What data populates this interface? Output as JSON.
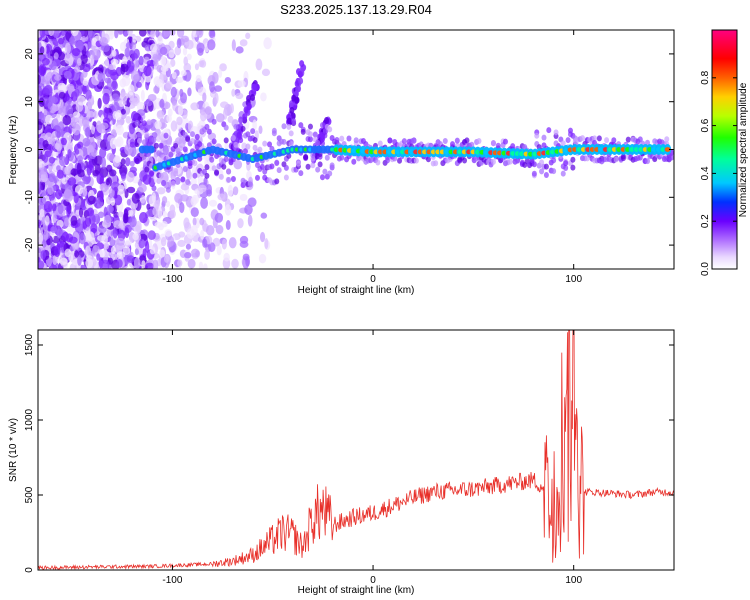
{
  "title": "S233.2025.137.13.29.R04",
  "chart_data": [
    {
      "type": "heatmap",
      "xlabel": "Height of straight line (km)",
      "ylabel": "Frequency (Hz)",
      "xlim": [
        -167,
        150
      ],
      "ylim": [
        -25,
        25
      ],
      "xticks": [
        -100,
        0,
        100
      ],
      "yticks": [
        -20,
        -10,
        0,
        10,
        20
      ],
      "colorbar": {
        "label": "Normalized spectral amplitude",
        "range": [
          0,
          1
        ],
        "ticks": [
          "0.0",
          "0.2",
          "0.4",
          "0.6",
          "0.8"
        ]
      },
      "ridge": [
        {
          "x": -110,
          "y": -4
        },
        {
          "x": -80,
          "y": 0
        },
        {
          "x": -60,
          "y": -2
        },
        {
          "x": -40,
          "y": 0
        },
        {
          "x": -20,
          "y": 0
        },
        {
          "x": 0,
          "y": -0.5
        },
        {
          "x": 50,
          "y": -0.5
        },
        {
          "x": 80,
          "y": -1
        },
        {
          "x": 100,
          "y": 0
        },
        {
          "x": 150,
          "y": 0
        }
      ],
      "colors": {
        "low": "#e9d8ff",
        "mid": "#7a1fff",
        "high": "#ff2a2a"
      }
    },
    {
      "type": "line",
      "xlabel": "Height of straight line (km)",
      "ylabel": "SNR (10 * v/v)",
      "xlim": [
        -167,
        150
      ],
      "ylim": [
        0,
        1600
      ],
      "xticks": [
        -100,
        0,
        100
      ],
      "yticks": [
        0,
        500,
        1000,
        1500
      ],
      "series": [
        {
          "color": "#e8302a",
          "x": [
            -167,
            -140,
            -110,
            -80,
            -70,
            -60,
            -50,
            -45,
            -40,
            -35,
            -30,
            -25,
            -20,
            -10,
            0,
            10,
            20,
            30,
            40,
            50,
            60,
            70,
            80,
            85,
            88,
            90,
            92,
            95,
            97,
            100,
            102,
            105,
            110,
            120,
            130,
            140,
            150
          ],
          "y": [
            15,
            20,
            25,
            40,
            60,
            100,
            200,
            250,
            230,
            150,
            350,
            400,
            300,
            350,
            380,
            430,
            480,
            520,
            530,
            540,
            560,
            580,
            600,
            550,
            450,
            500,
            700,
            900,
            1100,
            1350,
            700,
            520,
            520,
            510,
            500,
            520,
            520
          ]
        }
      ]
    }
  ]
}
